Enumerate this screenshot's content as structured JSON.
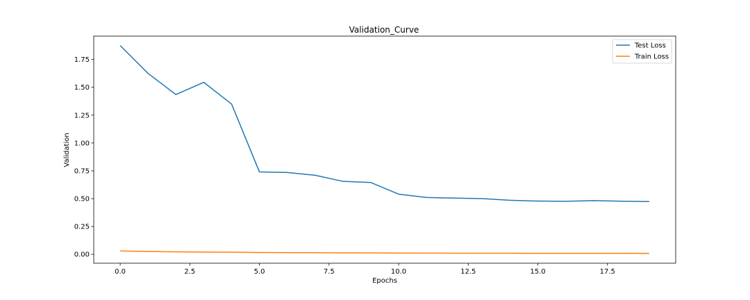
{
  "chart_data": {
    "type": "line",
    "title": "Validation_Curve",
    "xlabel": "Epochs",
    "ylabel": "Validation",
    "x": [
      0,
      1,
      2,
      3,
      4,
      5,
      6,
      7,
      8,
      9,
      10,
      11,
      12,
      13,
      14,
      15,
      16,
      17,
      18,
      19
    ],
    "series": [
      {
        "name": "Test Loss",
        "color": "#1f77b4",
        "values": [
          1.875,
          1.625,
          1.435,
          1.545,
          1.35,
          0.74,
          0.735,
          0.71,
          0.655,
          0.645,
          0.54,
          0.51,
          0.505,
          0.5,
          0.485,
          0.478,
          0.476,
          0.482,
          0.477,
          0.474
        ]
      },
      {
        "name": "Train Loss",
        "color": "#ff7f0e",
        "values": [
          0.03,
          0.025,
          0.022,
          0.02,
          0.019,
          0.016,
          0.015,
          0.014,
          0.013,
          0.012,
          0.011,
          0.0105,
          0.01,
          0.01,
          0.0095,
          0.009,
          0.0088,
          0.0086,
          0.0085,
          0.0083
        ]
      }
    ],
    "xlim": [
      -0.95,
      19.95
    ],
    "ylim": [
      -0.08,
      1.96
    ],
    "xticks": [
      0,
      2.5,
      5,
      7.5,
      10,
      12.5,
      15,
      17.5
    ],
    "xtick_labels": [
      "0.0",
      "2.5",
      "5.0",
      "7.5",
      "10.0",
      "12.5",
      "15.0",
      "17.5"
    ],
    "yticks": [
      0,
      0.25,
      0.5,
      0.75,
      1,
      1.25,
      1.5,
      1.75
    ],
    "ytick_labels": [
      "0.00",
      "0.25",
      "0.50",
      "0.75",
      "1.00",
      "1.25",
      "1.50",
      "1.75"
    ],
    "grid": false,
    "legend": "top-right"
  }
}
